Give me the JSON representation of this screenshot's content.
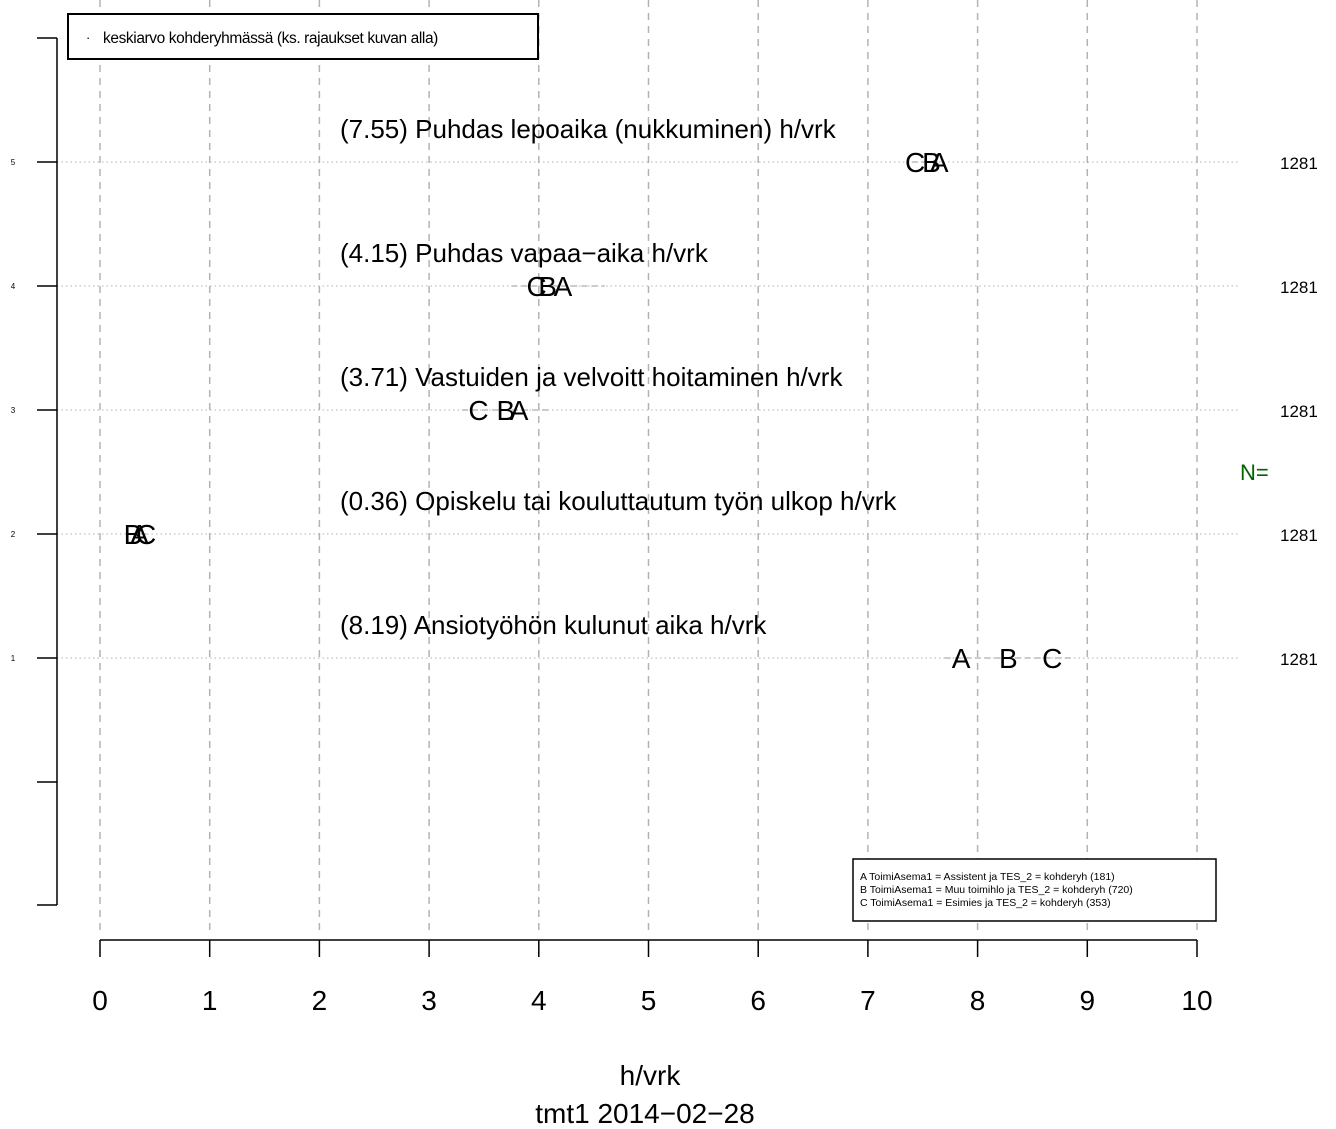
{
  "chart_data": {
    "type": "scatter",
    "xlabel": "h/vrk",
    "caption": "tmt1 2014−02−28",
    "xlim": [
      0,
      10
    ],
    "x_ticks": [
      "0",
      "1",
      "2",
      "3",
      "4",
      "5",
      "6",
      "7",
      "8",
      "9",
      "10"
    ],
    "y_ticks": [
      "1",
      "2",
      "3",
      "4",
      "5"
    ],
    "grid": "dashed vertical at each x tick, dotted horizontal at each row",
    "legend_top": "keskiarvo kohderyhmässä (ks. rajaukset kuvan alla)",
    "n_label": "N=",
    "groups": [
      {
        "key": "A",
        "label": "A  ToimiAsema1 = Assistent ja TES_2 = kohderyh (181)"
      },
      {
        "key": "B",
        "label": "B  ToimiAsema1 = Muu toimihlo ja TES_2 = kohderyh (720)"
      },
      {
        "key": "C",
        "label": "C  ToimiAsema1 = Esimies ja TES_2 = kohderyh (353)"
      }
    ],
    "rows": [
      {
        "y": 5,
        "title": "(7.55) Puhdas lepoaika (nukkuminen) h/vrk",
        "n": "1281",
        "points": [
          {
            "group": "C",
            "x": 7.43
          },
          {
            "group": "B",
            "x": 7.58
          },
          {
            "group": "A",
            "x": 7.65
          }
        ],
        "range": [
          7.4,
          7.7
        ]
      },
      {
        "y": 4,
        "title": "(4.15) Puhdas vapaa−aika h/vrk",
        "n": "1281",
        "points": [
          {
            "group": "C",
            "x": 3.98
          },
          {
            "group": "B",
            "x": 4.08
          },
          {
            "group": "A",
            "x": 4.22
          }
        ],
        "range": [
          3.75,
          4.6
        ]
      },
      {
        "y": 3,
        "title": "(3.71) Vastuiden ja velvoitt hoitaminen h/vrk",
        "n": "1281",
        "points": [
          {
            "group": "C",
            "x": 3.45
          },
          {
            "group": "B",
            "x": 3.7
          },
          {
            "group": "A",
            "x": 3.82
          }
        ],
        "range": [
          3.3,
          4.1
        ]
      },
      {
        "y": 2,
        "title": "(0.36) Opiskelu tai kouluttautum työn ulkop h/vrk",
        "n": "1281",
        "points": [
          {
            "group": "B",
            "x": 0.3
          },
          {
            "group": "A",
            "x": 0.36
          },
          {
            "group": "C",
            "x": 0.42
          }
        ],
        "range": [
          0.28,
          0.46
        ]
      },
      {
        "y": 1,
        "title": "(8.19) Ansiotyöhön kulunut aika h/vrk",
        "n": "1281",
        "points": [
          {
            "group": "A",
            "x": 7.85
          },
          {
            "group": "B",
            "x": 8.28
          },
          {
            "group": "C",
            "x": 8.68
          }
        ],
        "range": [
          7.7,
          8.85
        ]
      }
    ],
    "colors": {
      "text": "#000000",
      "grid": "#b3b3b3",
      "n_label": "#006400"
    }
  }
}
